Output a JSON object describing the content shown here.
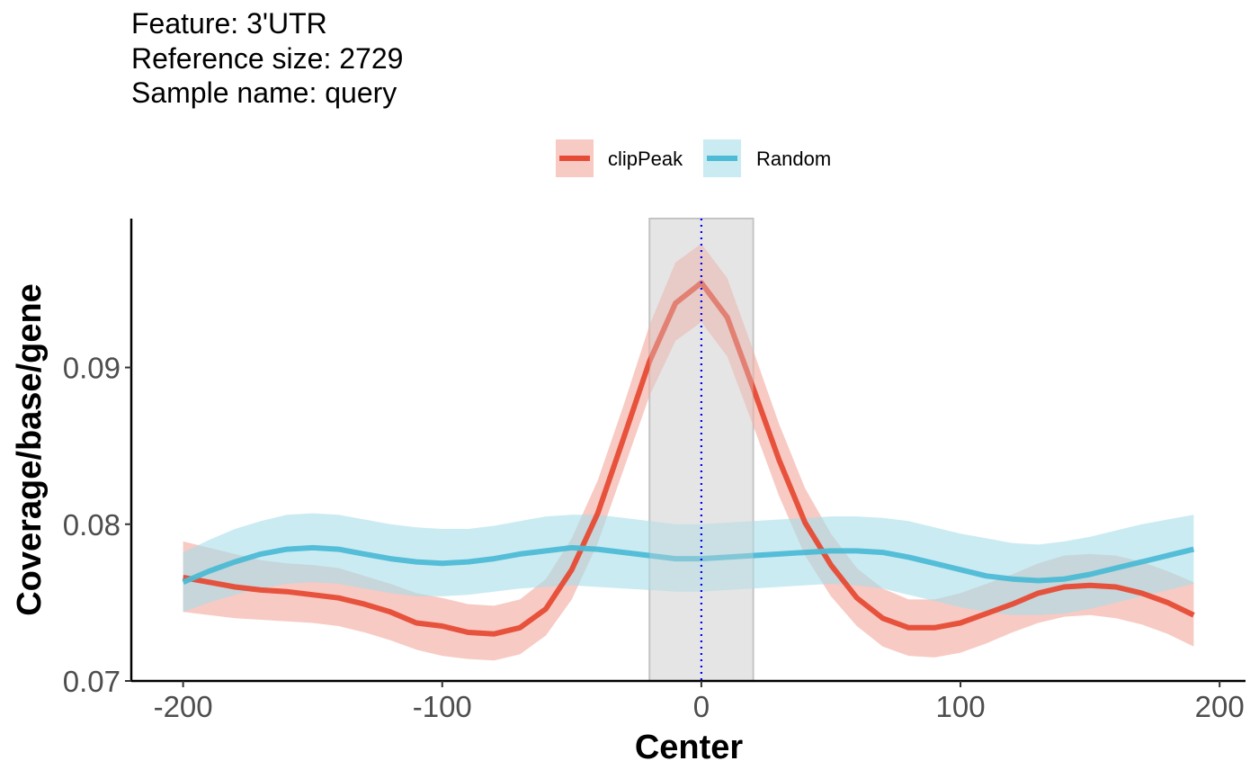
{
  "title": {
    "line1": "Feature: 3'UTR",
    "line2": "Reference size: 2729",
    "line3": "Sample name: query"
  },
  "legend": {
    "items": [
      {
        "label": "clipPeak",
        "color": "#E64B35",
        "ribbon": "#F4A79C"
      },
      {
        "label": "Random",
        "color": "#4DBBD5",
        "ribbon": "#A6DDEA"
      }
    ]
  },
  "chart_data": {
    "type": "line",
    "xlabel": "Center",
    "ylabel": "Coverage/base/gene",
    "xlim": [
      -220,
      210
    ],
    "ylim": [
      0.07,
      0.0995
    ],
    "xticks": [
      -200,
      -100,
      0,
      100,
      200
    ],
    "xtick_labels": [
      "-200",
      "-100",
      "0",
      "100",
      "200"
    ],
    "yticks": [
      0.07,
      0.08,
      0.09
    ],
    "ytick_labels": [
      "0.07",
      "0.08",
      "0.09"
    ],
    "grid": false,
    "legend_position": "top",
    "highlight_region": [
      -20,
      20
    ],
    "center_line": 0,
    "center_line_color": "#0000FF",
    "x": [
      -200,
      -190,
      -180,
      -170,
      -160,
      -150,
      -140,
      -130,
      -120,
      -110,
      -100,
      -90,
      -80,
      -70,
      -60,
      -50,
      -40,
      -30,
      -20,
      -10,
      0,
      10,
      20,
      30,
      40,
      50,
      60,
      70,
      80,
      90,
      100,
      110,
      120,
      130,
      140,
      150,
      160,
      170,
      180,
      190
    ],
    "series": [
      {
        "name": "clipPeak",
        "color": "#E64B35",
        "values": [
          0.0766,
          0.0763,
          0.076,
          0.0758,
          0.0757,
          0.0755,
          0.0753,
          0.0749,
          0.0744,
          0.0737,
          0.0735,
          0.0731,
          0.073,
          0.0734,
          0.0746,
          0.0771,
          0.0807,
          0.0855,
          0.0904,
          0.0941,
          0.0954,
          0.0932,
          0.0887,
          0.0841,
          0.0801,
          0.0774,
          0.0753,
          0.074,
          0.0734,
          0.0734,
          0.0737,
          0.0743,
          0.0749,
          0.0756,
          0.076,
          0.0761,
          0.076,
          0.0756,
          0.075,
          0.0742
        ],
        "lower": [
          0.0744,
          0.0742,
          0.074,
          0.0739,
          0.0738,
          0.0737,
          0.0735,
          0.0731,
          0.0726,
          0.072,
          0.0716,
          0.0714,
          0.0713,
          0.0717,
          0.0729,
          0.0752,
          0.0788,
          0.0835,
          0.0882,
          0.0917,
          0.0929,
          0.0907,
          0.0863,
          0.0818,
          0.078,
          0.0754,
          0.0735,
          0.0722,
          0.0716,
          0.0715,
          0.0718,
          0.0724,
          0.0731,
          0.0737,
          0.0741,
          0.0742,
          0.074,
          0.0736,
          0.073,
          0.0722
        ],
        "upper": [
          0.0789,
          0.0785,
          0.0781,
          0.0777,
          0.0775,
          0.0774,
          0.0772,
          0.0767,
          0.0762,
          0.0756,
          0.0753,
          0.0749,
          0.0748,
          0.0752,
          0.0765,
          0.0791,
          0.0828,
          0.0876,
          0.0927,
          0.0967,
          0.0979,
          0.0957,
          0.0911,
          0.0864,
          0.0823,
          0.0794,
          0.0772,
          0.0759,
          0.0752,
          0.0752,
          0.0756,
          0.0762,
          0.0768,
          0.0775,
          0.078,
          0.0781,
          0.078,
          0.0776,
          0.077,
          0.0763
        ]
      },
      {
        "name": "Random",
        "color": "#4DBBD5",
        "values": [
          0.0763,
          0.077,
          0.0776,
          0.0781,
          0.0784,
          0.0785,
          0.0784,
          0.0781,
          0.0778,
          0.0776,
          0.0775,
          0.0776,
          0.0778,
          0.0781,
          0.0783,
          0.0785,
          0.0784,
          0.0782,
          0.078,
          0.0778,
          0.0778,
          0.0779,
          0.078,
          0.0781,
          0.0782,
          0.0783,
          0.0783,
          0.0782,
          0.0779,
          0.0775,
          0.0771,
          0.0767,
          0.0765,
          0.0764,
          0.0765,
          0.0768,
          0.0772,
          0.0776,
          0.078,
          0.0784
        ],
        "lower": [
          0.0744,
          0.075,
          0.0755,
          0.0759,
          0.0762,
          0.0763,
          0.0762,
          0.0759,
          0.0756,
          0.0754,
          0.0754,
          0.0755,
          0.0757,
          0.0759,
          0.076,
          0.0761,
          0.076,
          0.0759,
          0.0758,
          0.0757,
          0.0757,
          0.0758,
          0.0759,
          0.076,
          0.0761,
          0.0762,
          0.0761,
          0.0759,
          0.0755,
          0.0751,
          0.0747,
          0.0744,
          0.0742,
          0.0742,
          0.0743,
          0.0746,
          0.075,
          0.0754,
          0.0758,
          0.0762
        ],
        "upper": [
          0.0782,
          0.079,
          0.0797,
          0.0802,
          0.0806,
          0.0807,
          0.0806,
          0.0803,
          0.08,
          0.0798,
          0.0797,
          0.0797,
          0.0799,
          0.0802,
          0.0805,
          0.0806,
          0.0806,
          0.0804,
          0.0802,
          0.08,
          0.08,
          0.0801,
          0.0802,
          0.0803,
          0.0804,
          0.0805,
          0.0805,
          0.0804,
          0.0802,
          0.0798,
          0.0794,
          0.0791,
          0.0788,
          0.0787,
          0.0789,
          0.0792,
          0.0796,
          0.08,
          0.0803,
          0.0806
        ]
      }
    ]
  }
}
